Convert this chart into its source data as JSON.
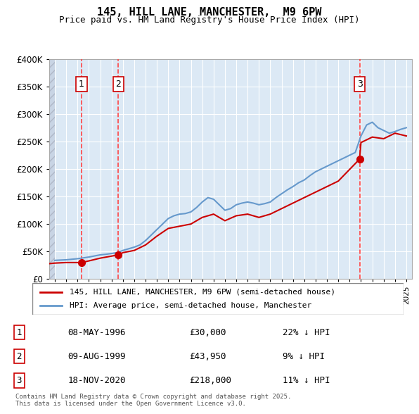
{
  "title": "145, HILL LANE, MANCHESTER,  M9 6PW",
  "subtitle": "Price paid vs. HM Land Registry's House Price Index (HPI)",
  "sale_dates_decimal": [
    1996.354,
    1999.604,
    2020.882
  ],
  "sale_prices": [
    30000,
    43950,
    218000
  ],
  "sale_labels": [
    "1",
    "2",
    "3"
  ],
  "legend_red": "145, HILL LANE, MANCHESTER, M9 6PW (semi-detached house)",
  "legend_blue": "HPI: Average price, semi-detached house, Manchester",
  "table_entries": [
    {
      "num": "1",
      "date": "08-MAY-1996",
      "price": "£30,000",
      "hpi": "22% ↓ HPI"
    },
    {
      "num": "2",
      "date": "09-AUG-1999",
      "price": "£43,950",
      "hpi": "9% ↓ HPI"
    },
    {
      "num": "3",
      "date": "18-NOV-2020",
      "price": "£218,000",
      "hpi": "11% ↓ HPI"
    }
  ],
  "footer": "Contains HM Land Registry data © Crown copyright and database right 2025.\nThis data is licensed under the Open Government Licence v3.0.",
  "ylim": [
    0,
    400000
  ],
  "xlim_start": 1993.5,
  "xlim_end": 2025.5,
  "hatch_end": 1994.0,
  "bg_color": "#dce9f5",
  "plot_bg": "#dce9f5",
  "hatch_color": "#b0b8c8",
  "red_line_color": "#cc0000",
  "blue_line_color": "#6699cc",
  "red_dot_color": "#cc0000",
  "vline_color": "#ff4444",
  "grid_color": "#ffffff",
  "hpi_years": [
    1994,
    1994.5,
    1995,
    1995.5,
    1996,
    1996.5,
    1997,
    1997.5,
    1998,
    1998.5,
    1999,
    1999.5,
    2000,
    2000.5,
    2001,
    2001.5,
    2002,
    2002.5,
    2003,
    2003.5,
    2004,
    2004.5,
    2005,
    2005.5,
    2006,
    2006.5,
    2007,
    2007.5,
    2008,
    2008.5,
    2009,
    2009.5,
    2010,
    2010.5,
    2011,
    2011.5,
    2012,
    2012.5,
    2013,
    2013.5,
    2014,
    2014.5,
    2015,
    2015.5,
    2016,
    2016.5,
    2017,
    2017.5,
    2018,
    2018.5,
    2019,
    2019.5,
    2020,
    2020.5,
    2021,
    2021.5,
    2022,
    2022.5,
    2023,
    2023.5,
    2024,
    2024.5,
    2025
  ],
  "hpi_values": [
    34000,
    34500,
    35000,
    36000,
    37000,
    38500,
    40000,
    42000,
    44000,
    45000,
    46500,
    48000,
    52000,
    55000,
    58000,
    62000,
    70000,
    80000,
    90000,
    100000,
    110000,
    115000,
    118000,
    119000,
    122000,
    130000,
    140000,
    148000,
    145000,
    135000,
    125000,
    128000,
    135000,
    138000,
    140000,
    138000,
    135000,
    137000,
    140000,
    148000,
    155000,
    162000,
    168000,
    175000,
    180000,
    188000,
    195000,
    200000,
    205000,
    210000,
    215000,
    220000,
    225000,
    230000,
    260000,
    280000,
    285000,
    275000,
    270000,
    265000,
    268000,
    272000,
    275000
  ],
  "red_years": [
    1993.5,
    1994,
    1995,
    1996.354,
    1997,
    1998,
    1999.604,
    2000,
    2001,
    2002,
    2003,
    2004,
    2005,
    2006,
    2007,
    2008,
    2009,
    2010,
    2011,
    2012,
    2013,
    2014,
    2015,
    2016,
    2017,
    2018,
    2019,
    2020.882,
    2021,
    2022,
    2023,
    2024,
    2025
  ],
  "red_values": [
    28000,
    29000,
    30000,
    30000,
    33000,
    38000,
    43950,
    48000,
    52000,
    62000,
    78000,
    92000,
    96000,
    100000,
    112000,
    118000,
    106000,
    115000,
    118000,
    112000,
    118000,
    128000,
    138000,
    148000,
    158000,
    168000,
    178000,
    218000,
    248000,
    258000,
    255000,
    265000,
    260000
  ]
}
